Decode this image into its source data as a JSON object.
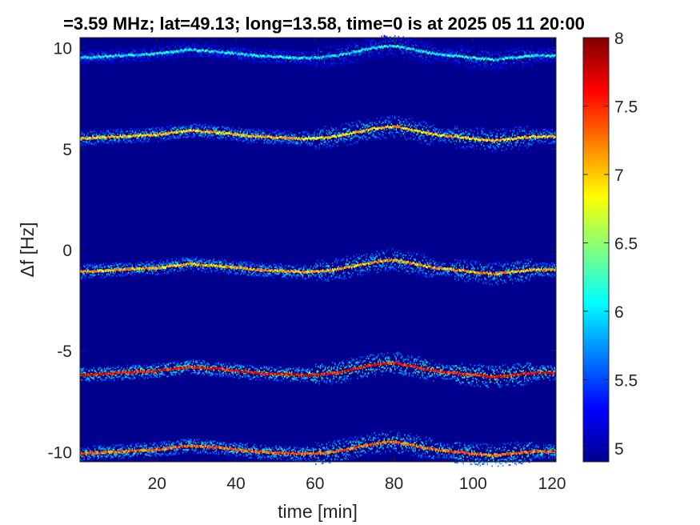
{
  "chart_data": {
    "type": "heatmap",
    "title": "=3.59 MHz;  lat=49.13; long=13.58, time=0 is at 2025 05 11 20:00",
    "xlabel": "time [min]",
    "ylabel": "Δf [Hz]",
    "xlim": [
      0.5,
      121
    ],
    "ylim": [
      -10.5,
      10.5
    ],
    "xticks": [
      "20",
      "40",
      "60",
      "80",
      "100",
      "120"
    ],
    "xtick_values": [
      20,
      40,
      60,
      80,
      100,
      120
    ],
    "yticks": [
      "10",
      "5",
      "0",
      "-5",
      "-10"
    ],
    "ytick_values": [
      10,
      5,
      0,
      -5,
      -10
    ],
    "colorbar": {
      "colormap": "jet",
      "range": [
        4.9,
        8
      ],
      "ticks": [
        "8",
        "7.5",
        "7",
        "6.5",
        "6",
        "5.5",
        "5"
      ],
      "tick_values": [
        8,
        7.5,
        7,
        6.5,
        6,
        5.5,
        5
      ]
    },
    "background_color": "#00008f",
    "traces": [
      {
        "base_hz": 9.6,
        "peak_level": 6.3
      },
      {
        "base_hz": 5.6,
        "peak_level": 7.3
      },
      {
        "base_hz": -1.0,
        "peak_level": 7.4
      },
      {
        "base_hz": -6.1,
        "peak_level": 7.9
      },
      {
        "base_hz": -10.0,
        "peak_level": 7.6
      }
    ],
    "trace_offset_profile": {
      "time_min": [
        0,
        10,
        20,
        28,
        35,
        45,
        55,
        60,
        65,
        70,
        75,
        80,
        85,
        90,
        95,
        100,
        105,
        110,
        115,
        121
      ],
      "offset_hz": [
        -0.1,
        0.0,
        0.1,
        0.3,
        0.2,
        0.0,
        -0.1,
        -0.1,
        0.0,
        0.2,
        0.4,
        0.5,
        0.3,
        0.1,
        0.0,
        -0.1,
        -0.2,
        -0.1,
        0.0,
        0.0
      ]
    }
  }
}
